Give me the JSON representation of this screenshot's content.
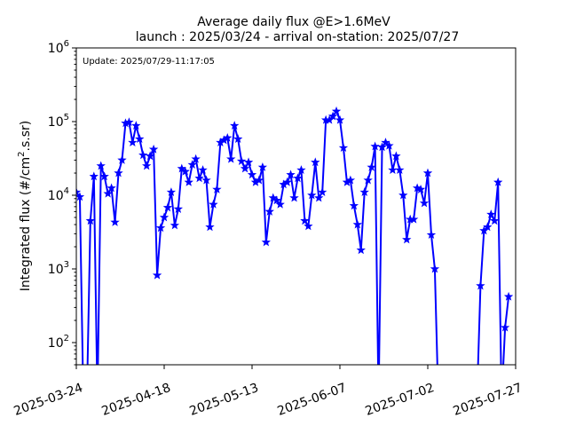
{
  "chart_data": {
    "type": "line",
    "title": "Average daily flux @E>1.6MeV",
    "subtitle": "launch : 2025/03/24 - arrival on-station: 2025/07/27",
    "ylabel_main": "Integrated flux (#/cm",
    "ylabel_sup": "2",
    "ylabel_tail": ".s.sr)",
    "annotation": "Update: 2025/07/29-11:17:05",
    "yscale": "log",
    "ylim": [
      50,
      1000000
    ],
    "xlim": [
      "2025-03-24",
      "2025-07-27"
    ],
    "grid": false,
    "marker": "star",
    "color": "#0000ff",
    "x_ticks": [
      "2025-03-24",
      "2025-04-18",
      "2025-05-13",
      "2025-06-07",
      "2025-07-02",
      "2025-07-27"
    ],
    "y_ticks": [
      {
        "value": 100,
        "base": "10",
        "exp": "2"
      },
      {
        "value": 1000,
        "base": "10",
        "exp": "3"
      },
      {
        "value": 10000,
        "base": "10",
        "exp": "4"
      },
      {
        "value": 100000,
        "base": "10",
        "exp": "5"
      },
      {
        "value": 1000000,
        "base": "10",
        "exp": "6"
      }
    ],
    "series": [
      {
        "points": [
          [
            "2025-03-24",
            11000
          ],
          [
            "2025-03-25",
            9500
          ],
          [
            "2025-03-26",
            null
          ],
          [
            "2025-03-27",
            null
          ],
          [
            "2025-03-28",
            4500
          ],
          [
            "2025-03-29",
            18000
          ],
          [
            "2025-03-30",
            null
          ],
          [
            "2025-03-31",
            25000
          ],
          [
            "2025-04-01",
            18000
          ],
          [
            "2025-04-02",
            10500
          ],
          [
            "2025-04-03",
            12500
          ],
          [
            "2025-04-04",
            4300
          ],
          [
            "2025-04-05",
            20000
          ],
          [
            "2025-04-06",
            30000
          ],
          [
            "2025-04-07",
            95000
          ],
          [
            "2025-04-08",
            98000
          ],
          [
            "2025-04-09",
            52000
          ],
          [
            "2025-04-10",
            88000
          ],
          [
            "2025-04-11",
            58000
          ],
          [
            "2025-04-12",
            35000
          ],
          [
            "2025-04-13",
            25000
          ],
          [
            "2025-04-14",
            34000
          ],
          [
            "2025-04-15",
            42000
          ],
          [
            "2025-04-16",
            820
          ],
          [
            "2025-04-17",
            3600
          ],
          [
            "2025-04-18",
            5000
          ],
          [
            "2025-04-19",
            6800
          ],
          [
            "2025-04-20",
            11000
          ],
          [
            "2025-04-21",
            3900
          ],
          [
            "2025-04-22",
            6500
          ],
          [
            "2025-04-23",
            23000
          ],
          [
            "2025-04-24",
            21000
          ],
          [
            "2025-04-25",
            15000
          ],
          [
            "2025-04-26",
            26000
          ],
          [
            "2025-04-27",
            31000
          ],
          [
            "2025-04-28",
            17000
          ],
          [
            "2025-04-29",
            22000
          ],
          [
            "2025-04-30",
            16000
          ],
          [
            "2025-05-01",
            3700
          ],
          [
            "2025-05-02",
            7500
          ],
          [
            "2025-05-03",
            12000
          ],
          [
            "2025-05-04",
            52000
          ],
          [
            "2025-05-05",
            56000
          ],
          [
            "2025-05-06",
            60000
          ],
          [
            "2025-05-07",
            31000
          ],
          [
            "2025-05-08",
            88000
          ],
          [
            "2025-05-09",
            58000
          ],
          [
            "2025-05-10",
            29000
          ],
          [
            "2025-05-11",
            23000
          ],
          [
            "2025-05-12",
            28000
          ],
          [
            "2025-05-13",
            19000
          ],
          [
            "2025-05-14",
            15000
          ],
          [
            "2025-05-15",
            16000
          ],
          [
            "2025-05-16",
            24000
          ],
          [
            "2025-05-17",
            2300
          ],
          [
            "2025-05-18",
            6000
          ],
          [
            "2025-05-19",
            9200
          ],
          [
            "2025-05-20",
            8500
          ],
          [
            "2025-05-21",
            7500
          ],
          [
            "2025-05-22",
            14000
          ],
          [
            "2025-05-23",
            15000
          ],
          [
            "2025-05-24",
            19000
          ],
          [
            "2025-05-25",
            9200
          ],
          [
            "2025-05-26",
            17000
          ],
          [
            "2025-05-27",
            22000
          ],
          [
            "2025-05-28",
            4500
          ],
          [
            "2025-05-29",
            3800
          ],
          [
            "2025-05-30",
            10000
          ],
          [
            "2025-05-31",
            28000
          ],
          [
            "2025-06-01",
            9200
          ],
          [
            "2025-06-02",
            11000
          ],
          [
            "2025-06-03",
            105000
          ],
          [
            "2025-06-04",
            105000
          ],
          [
            "2025-06-05",
            118000
          ],
          [
            "2025-06-06",
            138000
          ],
          [
            "2025-06-07",
            105000
          ],
          [
            "2025-06-08",
            44000
          ],
          [
            "2025-06-09",
            15000
          ],
          [
            "2025-06-10",
            16000
          ],
          [
            "2025-06-11",
            7200
          ],
          [
            "2025-06-12",
            4000
          ],
          [
            "2025-06-13",
            1800
          ],
          [
            "2025-06-14",
            11000
          ],
          [
            "2025-06-15",
            16000
          ],
          [
            "2025-06-16",
            24000
          ],
          [
            "2025-06-17",
            46000
          ],
          [
            "2025-06-18",
            null
          ],
          [
            "2025-06-19",
            45000
          ],
          [
            "2025-06-20",
            52000
          ],
          [
            "2025-06-21",
            47000
          ],
          [
            "2025-06-22",
            22000
          ],
          [
            "2025-06-23",
            34000
          ],
          [
            "2025-06-24",
            22000
          ],
          [
            "2025-06-25",
            10000
          ],
          [
            "2025-06-26",
            2500
          ],
          [
            "2025-06-27",
            4700
          ],
          [
            "2025-06-28",
            4700
          ],
          [
            "2025-06-29",
            12500
          ],
          [
            "2025-06-30",
            12000
          ],
          [
            "2025-07-01",
            7800
          ],
          [
            "2025-07-02",
            20000
          ],
          [
            "2025-07-03",
            2900
          ],
          [
            "2025-07-04",
            1000
          ],
          [
            "2025-07-05",
            null
          ],
          [
            "2025-07-06",
            null
          ],
          [
            "2025-07-07",
            null
          ],
          [
            "2025-07-08",
            null
          ],
          [
            "2025-07-09",
            null
          ],
          [
            "2025-07-10",
            null
          ],
          [
            "2025-07-11",
            null
          ],
          [
            "2025-07-12",
            null
          ],
          [
            "2025-07-13",
            null
          ],
          [
            "2025-07-14",
            null
          ],
          [
            "2025-07-15",
            null
          ],
          [
            "2025-07-16",
            null
          ],
          [
            "2025-07-17",
            590
          ],
          [
            "2025-07-18",
            3300
          ],
          [
            "2025-07-19",
            3700
          ],
          [
            "2025-07-20",
            5500
          ],
          [
            "2025-07-21",
            4500
          ],
          [
            "2025-07-22",
            15000
          ],
          [
            "2025-07-23",
            null
          ],
          [
            "2025-07-24",
            160
          ],
          [
            "2025-07-25",
            420
          ]
        ]
      }
    ]
  }
}
